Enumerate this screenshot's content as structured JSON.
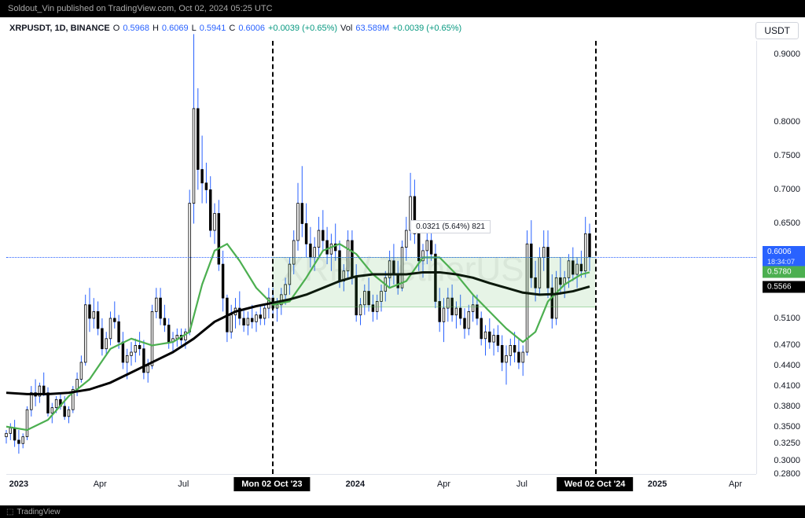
{
  "header": {
    "text": "Soldout_Vin published on TradingView.com, Oct 02, 2024 05:25 UTC"
  },
  "footer": {
    "text": "TradingView"
  },
  "ticker": {
    "symbol": "XRPUSDT, 1D, BINANCE",
    "o_label": "O",
    "o": "0.5968",
    "h_label": "H",
    "h": "0.6069",
    "l_label": "L",
    "l": "0.5941",
    "c_label": "C",
    "c": "0.6006",
    "change": "+0.0039 (+0.65%)",
    "vol_label": "Vol",
    "vol": "63.589M",
    "vol_change": "+0.0039 (+0.65%)"
  },
  "badge": {
    "quote": "USDT"
  },
  "watermark": {
    "text": "XRP / TetherUS"
  },
  "range_label": {
    "text": "0.0321 (5.64%) 821"
  },
  "y_axis": {
    "min": 0.28,
    "max": 0.92,
    "ticks": [
      0.9,
      0.8,
      0.75,
      0.7,
      0.65,
      0.51,
      0.47,
      0.44,
      0.41,
      0.38,
      0.35,
      0.325,
      0.3,
      0.28
    ],
    "tick_labels": [
      "0.9000",
      "0.8000",
      "0.7500",
      "0.7000",
      "0.6500",
      "0.5100",
      "0.4700",
      "0.4400",
      "0.4100",
      "0.3800",
      "0.3500",
      "0.3250",
      "0.3000",
      "0.2800"
    ]
  },
  "price_tags": {
    "current": {
      "value": 0.6006,
      "label": "0.6006",
      "countdown": "18:34:07",
      "color": "blue"
    },
    "ma_green": {
      "value": 0.578,
      "label": "0.5780",
      "color": "green"
    },
    "ma_black": {
      "value": 0.5566,
      "label": "0.5566",
      "color": "black"
    }
  },
  "x_axis": {
    "min_idx": 0,
    "max_idx": 560,
    "ticks": [
      {
        "idx": 12,
        "label": "2023",
        "bold": true
      },
      {
        "idx": 90,
        "label": "Apr"
      },
      {
        "idx": 170,
        "label": "Jul"
      },
      {
        "idx": 335,
        "label": "2024",
        "bold": true
      },
      {
        "idx": 420,
        "label": "Apr"
      },
      {
        "idx": 495,
        "label": "Jul"
      },
      {
        "idx": 625,
        "label": "2025",
        "bold": true
      },
      {
        "idx": 700,
        "label": "Apr"
      }
    ],
    "boxed": [
      {
        "idx": 255,
        "label": "Mon 02 Oct '23"
      },
      {
        "idx": 565,
        "label": "Wed 02 Oct '24"
      }
    ]
  },
  "vlines": [
    255,
    565
  ],
  "hline_current": 0.6006,
  "range_zone": {
    "idx_start": 255,
    "idx_end": 565,
    "y_top": 0.6008,
    "y_bot": 0.526
  },
  "colors": {
    "candle_up": "#2962ff",
    "candle_body": "#000000",
    "ma50_line": "#4caf50",
    "ma200_line": "#000000",
    "zone_fill": "rgba(76,175,80,0.14)",
    "bg": "#ffffff",
    "grid": "#e0e3eb",
    "dashed": "#000000"
  },
  "line_widths": {
    "ma50": 2.2,
    "ma200": 3.0,
    "wick": 1
  },
  "candles": [
    {
      "i": 0,
      "o": 0.335,
      "h": 0.345,
      "l": 0.325,
      "c": 0.34
    },
    {
      "i": 4,
      "o": 0.34,
      "h": 0.355,
      "l": 0.33,
      "c": 0.348
    },
    {
      "i": 8,
      "o": 0.348,
      "h": 0.36,
      "l": 0.32,
      "c": 0.33
    },
    {
      "i": 12,
      "o": 0.33,
      "h": 0.345,
      "l": 0.31,
      "c": 0.325
    },
    {
      "i": 16,
      "o": 0.325,
      "h": 0.34,
      "l": 0.318,
      "c": 0.335
    },
    {
      "i": 20,
      "o": 0.335,
      "h": 0.38,
      "l": 0.33,
      "c": 0.375
    },
    {
      "i": 24,
      "o": 0.375,
      "h": 0.41,
      "l": 0.365,
      "c": 0.4
    },
    {
      "i": 28,
      "o": 0.4,
      "h": 0.42,
      "l": 0.38,
      "c": 0.395
    },
    {
      "i": 32,
      "o": 0.395,
      "h": 0.415,
      "l": 0.385,
      "c": 0.41
    },
    {
      "i": 36,
      "o": 0.41,
      "h": 0.43,
      "l": 0.395,
      "c": 0.4
    },
    {
      "i": 40,
      "o": 0.4,
      "h": 0.408,
      "l": 0.365,
      "c": 0.37
    },
    {
      "i": 44,
      "o": 0.37,
      "h": 0.385,
      "l": 0.355,
      "c": 0.378
    },
    {
      "i": 48,
      "o": 0.378,
      "h": 0.395,
      "l": 0.37,
      "c": 0.39
    },
    {
      "i": 52,
      "o": 0.39,
      "h": 0.4,
      "l": 0.375,
      "c": 0.38
    },
    {
      "i": 56,
      "o": 0.38,
      "h": 0.395,
      "l": 0.36,
      "c": 0.365
    },
    {
      "i": 60,
      "o": 0.365,
      "h": 0.38,
      "l": 0.355,
      "c": 0.375
    },
    {
      "i": 64,
      "o": 0.375,
      "h": 0.41,
      "l": 0.37,
      "c": 0.405
    },
    {
      "i": 68,
      "o": 0.405,
      "h": 0.43,
      "l": 0.395,
      "c": 0.42
    },
    {
      "i": 72,
      "o": 0.42,
      "h": 0.455,
      "l": 0.415,
      "c": 0.445
    },
    {
      "i": 76,
      "o": 0.445,
      "h": 0.545,
      "l": 0.44,
      "c": 0.53
    },
    {
      "i": 80,
      "o": 0.53,
      "h": 0.555,
      "l": 0.49,
      "c": 0.51
    },
    {
      "i": 84,
      "o": 0.51,
      "h": 0.54,
      "l": 0.495,
      "c": 0.52
    },
    {
      "i": 88,
      "o": 0.52,
      "h": 0.535,
      "l": 0.485,
      "c": 0.495
    },
    {
      "i": 92,
      "o": 0.495,
      "h": 0.51,
      "l": 0.455,
      "c": 0.465
    },
    {
      "i": 96,
      "o": 0.465,
      "h": 0.49,
      "l": 0.455,
      "c": 0.48
    },
    {
      "i": 100,
      "o": 0.48,
      "h": 0.52,
      "l": 0.47,
      "c": 0.51
    },
    {
      "i": 104,
      "o": 0.51,
      "h": 0.535,
      "l": 0.495,
      "c": 0.505
    },
    {
      "i": 108,
      "o": 0.505,
      "h": 0.515,
      "l": 0.465,
      "c": 0.475
    },
    {
      "i": 112,
      "o": 0.475,
      "h": 0.49,
      "l": 0.435,
      "c": 0.445
    },
    {
      "i": 116,
      "o": 0.445,
      "h": 0.465,
      "l": 0.42,
      "c": 0.455
    },
    {
      "i": 120,
      "o": 0.455,
      "h": 0.475,
      "l": 0.44,
      "c": 0.46
    },
    {
      "i": 124,
      "o": 0.46,
      "h": 0.48,
      "l": 0.445,
      "c": 0.47
    },
    {
      "i": 128,
      "o": 0.47,
      "h": 0.49,
      "l": 0.455,
      "c": 0.465
    },
    {
      "i": 132,
      "o": 0.465,
      "h": 0.478,
      "l": 0.42,
      "c": 0.43
    },
    {
      "i": 136,
      "o": 0.43,
      "h": 0.45,
      "l": 0.415,
      "c": 0.44
    },
    {
      "i": 140,
      "o": 0.44,
      "h": 0.53,
      "l": 0.435,
      "c": 0.52
    },
    {
      "i": 144,
      "o": 0.52,
      "h": 0.555,
      "l": 0.51,
      "c": 0.54
    },
    {
      "i": 148,
      "o": 0.54,
      "h": 0.555,
      "l": 0.5,
      "c": 0.51
    },
    {
      "i": 152,
      "o": 0.51,
      "h": 0.53,
      "l": 0.49,
      "c": 0.5
    },
    {
      "i": 156,
      "o": 0.5,
      "h": 0.51,
      "l": 0.465,
      "c": 0.475
    },
    {
      "i": 160,
      "o": 0.475,
      "h": 0.49,
      "l": 0.46,
      "c": 0.48
    },
    {
      "i": 164,
      "o": 0.48,
      "h": 0.495,
      "l": 0.468,
      "c": 0.485
    },
    {
      "i": 168,
      "o": 0.485,
      "h": 0.495,
      "l": 0.47,
      "c": 0.478
    },
    {
      "i": 172,
      "o": 0.478,
      "h": 0.495,
      "l": 0.465,
      "c": 0.49
    },
    {
      "i": 176,
      "o": 0.49,
      "h": 0.7,
      "l": 0.485,
      "c": 0.68
    },
    {
      "i": 180,
      "o": 0.68,
      "h": 0.93,
      "l": 0.65,
      "c": 0.82
    },
    {
      "i": 184,
      "o": 0.82,
      "h": 0.85,
      "l": 0.7,
      "c": 0.73
    },
    {
      "i": 188,
      "o": 0.73,
      "h": 0.78,
      "l": 0.68,
      "c": 0.71
    },
    {
      "i": 192,
      "o": 0.71,
      "h": 0.74,
      "l": 0.68,
      "c": 0.7
    },
    {
      "i": 196,
      "o": 0.7,
      "h": 0.72,
      "l": 0.63,
      "c": 0.64
    },
    {
      "i": 200,
      "o": 0.64,
      "h": 0.68,
      "l": 0.62,
      "c": 0.665
    },
    {
      "i": 204,
      "o": 0.665,
      "h": 0.685,
      "l": 0.58,
      "c": 0.59
    },
    {
      "i": 208,
      "o": 0.59,
      "h": 0.61,
      "l": 0.52,
      "c": 0.54
    },
    {
      "i": 212,
      "o": 0.54,
      "h": 0.545,
      "l": 0.475,
      "c": 0.49
    },
    {
      "i": 216,
      "o": 0.49,
      "h": 0.53,
      "l": 0.48,
      "c": 0.515
    },
    {
      "i": 220,
      "o": 0.515,
      "h": 0.54,
      "l": 0.495,
      "c": 0.525
    },
    {
      "i": 224,
      "o": 0.525,
      "h": 0.55,
      "l": 0.5,
      "c": 0.51
    },
    {
      "i": 228,
      "o": 0.51,
      "h": 0.525,
      "l": 0.49,
      "c": 0.5
    },
    {
      "i": 232,
      "o": 0.5,
      "h": 0.52,
      "l": 0.485,
      "c": 0.51
    },
    {
      "i": 236,
      "o": 0.51,
      "h": 0.53,
      "l": 0.495,
      "c": 0.505
    },
    {
      "i": 240,
      "o": 0.505,
      "h": 0.52,
      "l": 0.49,
      "c": 0.515
    },
    {
      "i": 244,
      "o": 0.515,
      "h": 0.53,
      "l": 0.5,
      "c": 0.51
    },
    {
      "i": 248,
      "o": 0.51,
      "h": 0.53,
      "l": 0.5,
      "c": 0.525
    },
    {
      "i": 252,
      "o": 0.525,
      "h": 0.555,
      "l": 0.51,
      "c": 0.54
    },
    {
      "i": 256,
      "o": 0.54,
      "h": 0.555,
      "l": 0.515,
      "c": 0.525
    },
    {
      "i": 260,
      "o": 0.525,
      "h": 0.54,
      "l": 0.505,
      "c": 0.53
    },
    {
      "i": 264,
      "o": 0.53,
      "h": 0.555,
      "l": 0.515,
      "c": 0.545
    },
    {
      "i": 268,
      "o": 0.545,
      "h": 0.57,
      "l": 0.53,
      "c": 0.56
    },
    {
      "i": 272,
      "o": 0.56,
      "h": 0.6,
      "l": 0.545,
      "c": 0.59
    },
    {
      "i": 276,
      "o": 0.59,
      "h": 0.64,
      "l": 0.575,
      "c": 0.625
    },
    {
      "i": 280,
      "o": 0.625,
      "h": 0.71,
      "l": 0.61,
      "c": 0.68
    },
    {
      "i": 284,
      "o": 0.68,
      "h": 0.735,
      "l": 0.63,
      "c": 0.65
    },
    {
      "i": 288,
      "o": 0.65,
      "h": 0.68,
      "l": 0.6,
      "c": 0.62
    },
    {
      "i": 292,
      "o": 0.62,
      "h": 0.645,
      "l": 0.585,
      "c": 0.6
    },
    {
      "i": 296,
      "o": 0.6,
      "h": 0.63,
      "l": 0.58,
      "c": 0.615
    },
    {
      "i": 300,
      "o": 0.615,
      "h": 0.66,
      "l": 0.6,
      "c": 0.64
    },
    {
      "i": 304,
      "o": 0.64,
      "h": 0.67,
      "l": 0.61,
      "c": 0.625
    },
    {
      "i": 308,
      "o": 0.625,
      "h": 0.645,
      "l": 0.59,
      "c": 0.605
    },
    {
      "i": 312,
      "o": 0.605,
      "h": 0.635,
      "l": 0.58,
      "c": 0.62
    },
    {
      "i": 316,
      "o": 0.62,
      "h": 0.65,
      "l": 0.595,
      "c": 0.61
    },
    {
      "i": 320,
      "o": 0.61,
      "h": 0.625,
      "l": 0.555,
      "c": 0.565
    },
    {
      "i": 324,
      "o": 0.565,
      "h": 0.59,
      "l": 0.55,
      "c": 0.58
    },
    {
      "i": 328,
      "o": 0.58,
      "h": 0.64,
      "l": 0.57,
      "c": 0.625
    },
    {
      "i": 332,
      "o": 0.625,
      "h": 0.64,
      "l": 0.56,
      "c": 0.57
    },
    {
      "i": 336,
      "o": 0.57,
      "h": 0.59,
      "l": 0.505,
      "c": 0.515
    },
    {
      "i": 340,
      "o": 0.515,
      "h": 0.54,
      "l": 0.5,
      "c": 0.53
    },
    {
      "i": 344,
      "o": 0.53,
      "h": 0.56,
      "l": 0.515,
      "c": 0.55
    },
    {
      "i": 348,
      "o": 0.55,
      "h": 0.57,
      "l": 0.52,
      "c": 0.53
    },
    {
      "i": 352,
      "o": 0.53,
      "h": 0.545,
      "l": 0.505,
      "c": 0.52
    },
    {
      "i": 356,
      "o": 0.52,
      "h": 0.545,
      "l": 0.508,
      "c": 0.535
    },
    {
      "i": 360,
      "o": 0.535,
      "h": 0.56,
      "l": 0.52,
      "c": 0.55
    },
    {
      "i": 364,
      "o": 0.55,
      "h": 0.58,
      "l": 0.535,
      "c": 0.57
    },
    {
      "i": 368,
      "o": 0.57,
      "h": 0.61,
      "l": 0.555,
      "c": 0.595
    },
    {
      "i": 372,
      "o": 0.595,
      "h": 0.62,
      "l": 0.56,
      "c": 0.575
    },
    {
      "i": 376,
      "o": 0.575,
      "h": 0.595,
      "l": 0.545,
      "c": 0.555
    },
    {
      "i": 380,
      "o": 0.555,
      "h": 0.625,
      "l": 0.55,
      "c": 0.615
    },
    {
      "i": 384,
      "o": 0.615,
      "h": 0.66,
      "l": 0.595,
      "c": 0.64
    },
    {
      "i": 388,
      "o": 0.64,
      "h": 0.725,
      "l": 0.625,
      "c": 0.69
    },
    {
      "i": 392,
      "o": 0.69,
      "h": 0.715,
      "l": 0.62,
      "c": 0.635
    },
    {
      "i": 396,
      "o": 0.635,
      "h": 0.655,
      "l": 0.58,
      "c": 0.595
    },
    {
      "i": 400,
      "o": 0.595,
      "h": 0.62,
      "l": 0.57,
      "c": 0.61
    },
    {
      "i": 404,
      "o": 0.61,
      "h": 0.645,
      "l": 0.59,
      "c": 0.625
    },
    {
      "i": 408,
      "o": 0.625,
      "h": 0.655,
      "l": 0.595,
      "c": 0.605
    },
    {
      "i": 412,
      "o": 0.605,
      "h": 0.62,
      "l": 0.525,
      "c": 0.535
    },
    {
      "i": 416,
      "o": 0.535,
      "h": 0.555,
      "l": 0.49,
      "c": 0.505
    },
    {
      "i": 420,
      "o": 0.505,
      "h": 0.54,
      "l": 0.475,
      "c": 0.525
    },
    {
      "i": 424,
      "o": 0.525,
      "h": 0.555,
      "l": 0.505,
      "c": 0.54
    },
    {
      "i": 428,
      "o": 0.54,
      "h": 0.56,
      "l": 0.505,
      "c": 0.515
    },
    {
      "i": 432,
      "o": 0.515,
      "h": 0.535,
      "l": 0.495,
      "c": 0.525
    },
    {
      "i": 436,
      "o": 0.525,
      "h": 0.545,
      "l": 0.5,
      "c": 0.51
    },
    {
      "i": 440,
      "o": 0.51,
      "h": 0.525,
      "l": 0.48,
      "c": 0.495
    },
    {
      "i": 444,
      "o": 0.495,
      "h": 0.53,
      "l": 0.485,
      "c": 0.52
    },
    {
      "i": 448,
      "o": 0.52,
      "h": 0.545,
      "l": 0.505,
      "c": 0.53
    },
    {
      "i": 452,
      "o": 0.53,
      "h": 0.545,
      "l": 0.5,
      "c": 0.51
    },
    {
      "i": 456,
      "o": 0.51,
      "h": 0.52,
      "l": 0.47,
      "c": 0.48
    },
    {
      "i": 460,
      "o": 0.48,
      "h": 0.5,
      "l": 0.455,
      "c": 0.49
    },
    {
      "i": 464,
      "o": 0.49,
      "h": 0.51,
      "l": 0.465,
      "c": 0.475
    },
    {
      "i": 468,
      "o": 0.475,
      "h": 0.495,
      "l": 0.455,
      "c": 0.485
    },
    {
      "i": 472,
      "o": 0.485,
      "h": 0.5,
      "l": 0.46,
      "c": 0.47
    },
    {
      "i": 476,
      "o": 0.47,
      "h": 0.485,
      "l": 0.432,
      "c": 0.445
    },
    {
      "i": 480,
      "o": 0.445,
      "h": 0.47,
      "l": 0.412,
      "c": 0.455
    },
    {
      "i": 484,
      "o": 0.455,
      "h": 0.48,
      "l": 0.44,
      "c": 0.47
    },
    {
      "i": 488,
      "o": 0.47,
      "h": 0.49,
      "l": 0.445,
      "c": 0.46
    },
    {
      "i": 492,
      "o": 0.46,
      "h": 0.48,
      "l": 0.435,
      "c": 0.445
    },
    {
      "i": 496,
      "o": 0.445,
      "h": 0.47,
      "l": 0.425,
      "c": 0.46
    },
    {
      "i": 500,
      "o": 0.46,
      "h": 0.64,
      "l": 0.455,
      "c": 0.62
    },
    {
      "i": 504,
      "o": 0.62,
      "h": 0.655,
      "l": 0.555,
      "c": 0.57
    },
    {
      "i": 508,
      "o": 0.57,
      "h": 0.595,
      "l": 0.535,
      "c": 0.555
    },
    {
      "i": 512,
      "o": 0.555,
      "h": 0.615,
      "l": 0.545,
      "c": 0.6
    },
    {
      "i": 516,
      "o": 0.6,
      "h": 0.64,
      "l": 0.58,
      "c": 0.615
    },
    {
      "i": 520,
      "o": 0.615,
      "h": 0.64,
      "l": 0.54,
      "c": 0.555
    },
    {
      "i": 524,
      "o": 0.555,
      "h": 0.575,
      "l": 0.495,
      "c": 0.51
    },
    {
      "i": 528,
      "o": 0.51,
      "h": 0.58,
      "l": 0.5,
      "c": 0.57
    },
    {
      "i": 532,
      "o": 0.57,
      "h": 0.6,
      "l": 0.545,
      "c": 0.56
    },
    {
      "i": 536,
      "o": 0.56,
      "h": 0.58,
      "l": 0.54,
      "c": 0.57
    },
    {
      "i": 540,
      "o": 0.57,
      "h": 0.605,
      "l": 0.555,
      "c": 0.595
    },
    {
      "i": 544,
      "o": 0.595,
      "h": 0.615,
      "l": 0.565,
      "c": 0.575
    },
    {
      "i": 548,
      "o": 0.575,
      "h": 0.6,
      "l": 0.555,
      "c": 0.59
    },
    {
      "i": 552,
      "o": 0.59,
      "h": 0.61,
      "l": 0.57,
      "c": 0.58
    },
    {
      "i": 556,
      "o": 0.58,
      "h": 0.66,
      "l": 0.57,
      "c": 0.635
    },
    {
      "i": 560,
      "o": 0.635,
      "h": 0.65,
      "l": 0.58,
      "c": 0.601
    }
  ],
  "ma50": [
    {
      "i": 0,
      "v": 0.35
    },
    {
      "i": 20,
      "v": 0.345
    },
    {
      "i": 40,
      "v": 0.36
    },
    {
      "i": 60,
      "v": 0.395
    },
    {
      "i": 80,
      "v": 0.42
    },
    {
      "i": 100,
      "v": 0.465
    },
    {
      "i": 120,
      "v": 0.48
    },
    {
      "i": 140,
      "v": 0.47
    },
    {
      "i": 160,
      "v": 0.475
    },
    {
      "i": 176,
      "v": 0.49
    },
    {
      "i": 188,
      "v": 0.56
    },
    {
      "i": 200,
      "v": 0.61
    },
    {
      "i": 212,
      "v": 0.62
    },
    {
      "i": 224,
      "v": 0.595
    },
    {
      "i": 240,
      "v": 0.555
    },
    {
      "i": 256,
      "v": 0.53
    },
    {
      "i": 272,
      "v": 0.535
    },
    {
      "i": 288,
      "v": 0.57
    },
    {
      "i": 304,
      "v": 0.61
    },
    {
      "i": 320,
      "v": 0.62
    },
    {
      "i": 336,
      "v": 0.605
    },
    {
      "i": 352,
      "v": 0.575
    },
    {
      "i": 368,
      "v": 0.555
    },
    {
      "i": 384,
      "v": 0.565
    },
    {
      "i": 400,
      "v": 0.6
    },
    {
      "i": 416,
      "v": 0.6
    },
    {
      "i": 432,
      "v": 0.575
    },
    {
      "i": 448,
      "v": 0.545
    },
    {
      "i": 464,
      "v": 0.52
    },
    {
      "i": 480,
      "v": 0.495
    },
    {
      "i": 496,
      "v": 0.475
    },
    {
      "i": 508,
      "v": 0.49
    },
    {
      "i": 520,
      "v": 0.535
    },
    {
      "i": 536,
      "v": 0.56
    },
    {
      "i": 552,
      "v": 0.575
    },
    {
      "i": 560,
      "v": 0.578
    }
  ],
  "ma200": [
    {
      "i": 0,
      "v": 0.4
    },
    {
      "i": 20,
      "v": 0.398
    },
    {
      "i": 40,
      "v": 0.398
    },
    {
      "i": 60,
      "v": 0.4
    },
    {
      "i": 80,
      "v": 0.405
    },
    {
      "i": 100,
      "v": 0.415
    },
    {
      "i": 120,
      "v": 0.43
    },
    {
      "i": 140,
      "v": 0.445
    },
    {
      "i": 160,
      "v": 0.46
    },
    {
      "i": 180,
      "v": 0.48
    },
    {
      "i": 200,
      "v": 0.505
    },
    {
      "i": 220,
      "v": 0.52
    },
    {
      "i": 240,
      "v": 0.528
    },
    {
      "i": 256,
      "v": 0.533
    },
    {
      "i": 272,
      "v": 0.538
    },
    {
      "i": 288,
      "v": 0.545
    },
    {
      "i": 304,
      "v": 0.555
    },
    {
      "i": 320,
      "v": 0.565
    },
    {
      "i": 336,
      "v": 0.572
    },
    {
      "i": 352,
      "v": 0.575
    },
    {
      "i": 368,
      "v": 0.575
    },
    {
      "i": 384,
      "v": 0.575
    },
    {
      "i": 400,
      "v": 0.578
    },
    {
      "i": 416,
      "v": 0.578
    },
    {
      "i": 432,
      "v": 0.575
    },
    {
      "i": 448,
      "v": 0.57
    },
    {
      "i": 464,
      "v": 0.562
    },
    {
      "i": 480,
      "v": 0.555
    },
    {
      "i": 496,
      "v": 0.548
    },
    {
      "i": 512,
      "v": 0.545
    },
    {
      "i": 528,
      "v": 0.546
    },
    {
      "i": 544,
      "v": 0.55
    },
    {
      "i": 560,
      "v": 0.557
    }
  ]
}
